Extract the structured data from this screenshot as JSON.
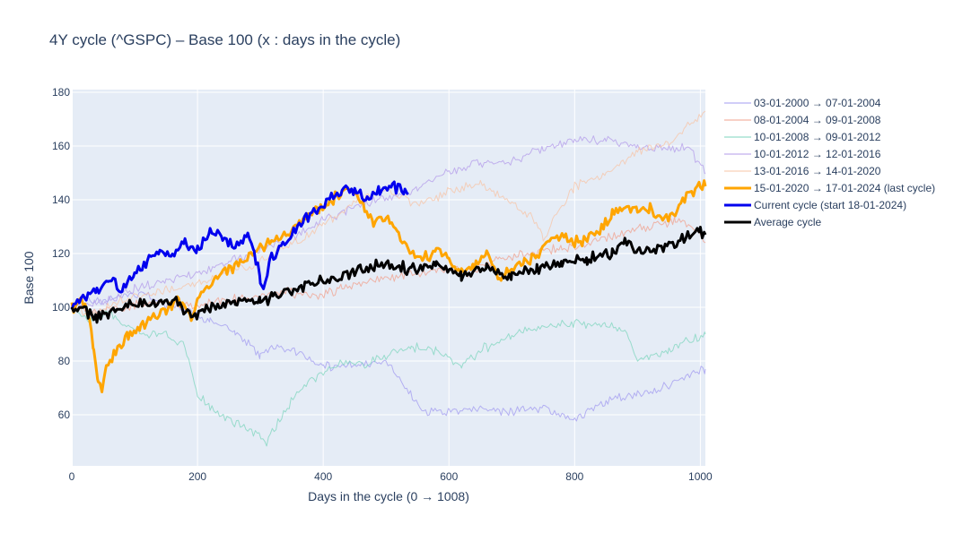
{
  "chart_data": {
    "type": "line",
    "title": "4Y cycle (^GSPC) – Base 100 (x : days in the cycle)",
    "xlabel": "Days in the cycle (0 → 1008)",
    "ylabel": "Base 100",
    "xlim": [
      0,
      1008
    ],
    "ylim": [
      41,
      181
    ],
    "x_ticks": [
      0,
      200,
      400,
      600,
      800,
      1000
    ],
    "y_ticks": [
      60,
      80,
      100,
      120,
      140,
      160,
      180
    ],
    "grid": true,
    "legend_position": "right",
    "series": [
      {
        "name": "03-01-2000 → 07-01-2004",
        "color": "#a29bf0",
        "points": [
          [
            0,
            100
          ],
          [
            20,
            103
          ],
          [
            50,
            102
          ],
          [
            80,
            104
          ],
          [
            110,
            105
          ],
          [
            140,
            102
          ],
          [
            180,
            99
          ],
          [
            220,
            95
          ],
          [
            260,
            91
          ],
          [
            300,
            82
          ],
          [
            330,
            86
          ],
          [
            360,
            83
          ],
          [
            400,
            78
          ],
          [
            450,
            78
          ],
          [
            500,
            80
          ],
          [
            530,
            70
          ],
          [
            560,
            61
          ],
          [
            600,
            61
          ],
          [
            650,
            62
          ],
          [
            700,
            61
          ],
          [
            750,
            63
          ],
          [
            800,
            58
          ],
          [
            850,
            65
          ],
          [
            900,
            68
          ],
          [
            950,
            71
          ],
          [
            1008,
            77
          ]
        ]
      },
      {
        "name": "08-01-2004 → 09-01-2008",
        "color": "#f0a08c",
        "points": [
          [
            0,
            100
          ],
          [
            50,
            98
          ],
          [
            100,
            101
          ],
          [
            150,
            102
          ],
          [
            200,
            100
          ],
          [
            250,
            103
          ],
          [
            300,
            104
          ],
          [
            340,
            106
          ],
          [
            380,
            104
          ],
          [
            430,
            107
          ],
          [
            480,
            110
          ],
          [
            530,
            112
          ],
          [
            580,
            114
          ],
          [
            630,
            113
          ],
          [
            680,
            118
          ],
          [
            730,
            120
          ],
          [
            780,
            122
          ],
          [
            830,
            124
          ],
          [
            880,
            128
          ],
          [
            920,
            130
          ],
          [
            960,
            132
          ],
          [
            990,
            130
          ],
          [
            1008,
            124
          ]
        ]
      },
      {
        "name": "10-01-2008 → 09-01-2012",
        "color": "#7ed6bd",
        "points": [
          [
            0,
            100
          ],
          [
            30,
            95
          ],
          [
            60,
            98
          ],
          [
            90,
            92
          ],
          [
            120,
            90
          ],
          [
            150,
            90
          ],
          [
            180,
            85
          ],
          [
            200,
            68
          ],
          [
            220,
            63
          ],
          [
            250,
            58
          ],
          [
            280,
            55
          ],
          [
            310,
            50
          ],
          [
            340,
            62
          ],
          [
            370,
            71
          ],
          [
            400,
            76
          ],
          [
            430,
            80
          ],
          [
            470,
            79
          ],
          [
            500,
            82
          ],
          [
            540,
            85
          ],
          [
            580,
            84
          ],
          [
            620,
            78
          ],
          [
            650,
            84
          ],
          [
            700,
            90
          ],
          [
            750,
            93
          ],
          [
            800,
            94
          ],
          [
            850,
            93
          ],
          [
            880,
            92
          ],
          [
            900,
            80
          ],
          [
            950,
            84
          ],
          [
            1008,
            90
          ]
        ]
      },
      {
        "name": "10-01-2012 → 12-01-2016",
        "color": "#b39bea",
        "points": [
          [
            0,
            100
          ],
          [
            50,
            102
          ],
          [
            100,
            107
          ],
          [
            150,
            110
          ],
          [
            200,
            112
          ],
          [
            250,
            117
          ],
          [
            300,
            121
          ],
          [
            350,
            126
          ],
          [
            400,
            132
          ],
          [
            450,
            137
          ],
          [
            500,
            141
          ],
          [
            550,
            144
          ],
          [
            600,
            150
          ],
          [
            650,
            154
          ],
          [
            700,
            154
          ],
          [
            750,
            159
          ],
          [
            800,
            162
          ],
          [
            850,
            162
          ],
          [
            900,
            160
          ],
          [
            950,
            159
          ],
          [
            980,
            160
          ],
          [
            1008,
            150
          ]
        ]
      },
      {
        "name": "13-01-2016 → 14-01-2020",
        "color": "#f7c4a5",
        "points": [
          [
            0,
            100
          ],
          [
            30,
            96
          ],
          [
            60,
            101
          ],
          [
            100,
            104
          ],
          [
            150,
            106
          ],
          [
            200,
            109
          ],
          [
            250,
            113
          ],
          [
            300,
            117
          ],
          [
            350,
            124
          ],
          [
            400,
            130
          ],
          [
            450,
            140
          ],
          [
            500,
            144
          ],
          [
            550,
            138
          ],
          [
            600,
            143
          ],
          [
            650,
            146
          ],
          [
            700,
            138
          ],
          [
            730,
            134
          ],
          [
            750,
            126
          ],
          [
            800,
            145
          ],
          [
            850,
            150
          ],
          [
            900,
            158
          ],
          [
            950,
            161
          ],
          [
            1008,
            173
          ]
        ]
      },
      {
        "name": "15-01-2020 → 17-01-2024 (last cycle)",
        "color": "#ffa500",
        "width": 3,
        "points": [
          [
            0,
            100
          ],
          [
            15,
            102
          ],
          [
            25,
            98
          ],
          [
            35,
            85
          ],
          [
            42,
            72
          ],
          [
            48,
            68
          ],
          [
            55,
            78
          ],
          [
            70,
            84
          ],
          [
            90,
            89
          ],
          [
            110,
            93
          ],
          [
            130,
            97
          ],
          [
            150,
            99
          ],
          [
            170,
            103
          ],
          [
            190,
            96
          ],
          [
            200,
            104
          ],
          [
            220,
            109
          ],
          [
            250,
            114
          ],
          [
            270,
            117
          ],
          [
            300,
            122
          ],
          [
            320,
            125
          ],
          [
            350,
            128
          ],
          [
            370,
            133
          ],
          [
            390,
            136
          ],
          [
            410,
            139
          ],
          [
            430,
            143
          ],
          [
            450,
            143
          ],
          [
            460,
            140
          ],
          [
            480,
            132
          ],
          [
            500,
            134
          ],
          [
            520,
            127
          ],
          [
            540,
            120
          ],
          [
            560,
            118
          ],
          [
            580,
            122
          ],
          [
            600,
            117
          ],
          [
            620,
            113
          ],
          [
            640,
            116
          ],
          [
            660,
            120
          ],
          [
            680,
            110
          ],
          [
            700,
            115
          ],
          [
            720,
            117
          ],
          [
            740,
            120
          ],
          [
            760,
            125
          ],
          [
            780,
            126
          ],
          [
            800,
            124
          ],
          [
            820,
            126
          ],
          [
            840,
            129
          ],
          [
            860,
            134
          ],
          [
            880,
            138
          ],
          [
            900,
            136
          ],
          [
            920,
            137
          ],
          [
            940,
            132
          ],
          [
            960,
            136
          ],
          [
            980,
            142
          ],
          [
            1000,
            145
          ],
          [
            1008,
            145
          ]
        ]
      },
      {
        "name": "Current cycle (start 18-01-2024)",
        "color": "#0000ee",
        "width": 3,
        "points": [
          [
            0,
            100
          ],
          [
            20,
            104
          ],
          [
            40,
            107
          ],
          [
            60,
            110
          ],
          [
            80,
            106
          ],
          [
            100,
            113
          ],
          [
            120,
            117
          ],
          [
            140,
            120
          ],
          [
            160,
            119
          ],
          [
            180,
            124
          ],
          [
            200,
            122
          ],
          [
            220,
            128
          ],
          [
            240,
            126
          ],
          [
            260,
            122
          ],
          [
            280,
            127
          ],
          [
            290,
            121
          ],
          [
            300,
            110
          ],
          [
            305,
            105
          ],
          [
            315,
            118
          ],
          [
            330,
            121
          ],
          [
            350,
            127
          ],
          [
            370,
            133
          ],
          [
            390,
            136
          ],
          [
            410,
            140
          ],
          [
            430,
            143
          ],
          [
            450,
            144
          ],
          [
            470,
            141
          ],
          [
            490,
            144
          ],
          [
            510,
            145
          ],
          [
            530,
            143
          ],
          [
            535,
            142
          ]
        ]
      },
      {
        "name": "Average cycle",
        "color": "#000000",
        "width": 3,
        "points": [
          [
            0,
            100
          ],
          [
            20,
            99
          ],
          [
            40,
            96
          ],
          [
            60,
            98
          ],
          [
            80,
            100
          ],
          [
            100,
            101
          ],
          [
            130,
            101
          ],
          [
            160,
            103
          ],
          [
            190,
            97
          ],
          [
            220,
            100
          ],
          [
            260,
            102
          ],
          [
            300,
            102
          ],
          [
            320,
            104
          ],
          [
            350,
            106
          ],
          [
            380,
            109
          ],
          [
            420,
            110
          ],
          [
            460,
            114
          ],
          [
            500,
            117
          ],
          [
            540,
            114
          ],
          [
            580,
            116
          ],
          [
            620,
            112
          ],
          [
            660,
            114
          ],
          [
            700,
            112
          ],
          [
            740,
            114
          ],
          [
            780,
            116
          ],
          [
            820,
            118
          ],
          [
            860,
            120
          ],
          [
            880,
            125
          ],
          [
            900,
            122
          ],
          [
            920,
            120
          ],
          [
            950,
            123
          ],
          [
            980,
            126
          ],
          [
            1000,
            128
          ],
          [
            1008,
            127
          ]
        ]
      }
    ]
  }
}
